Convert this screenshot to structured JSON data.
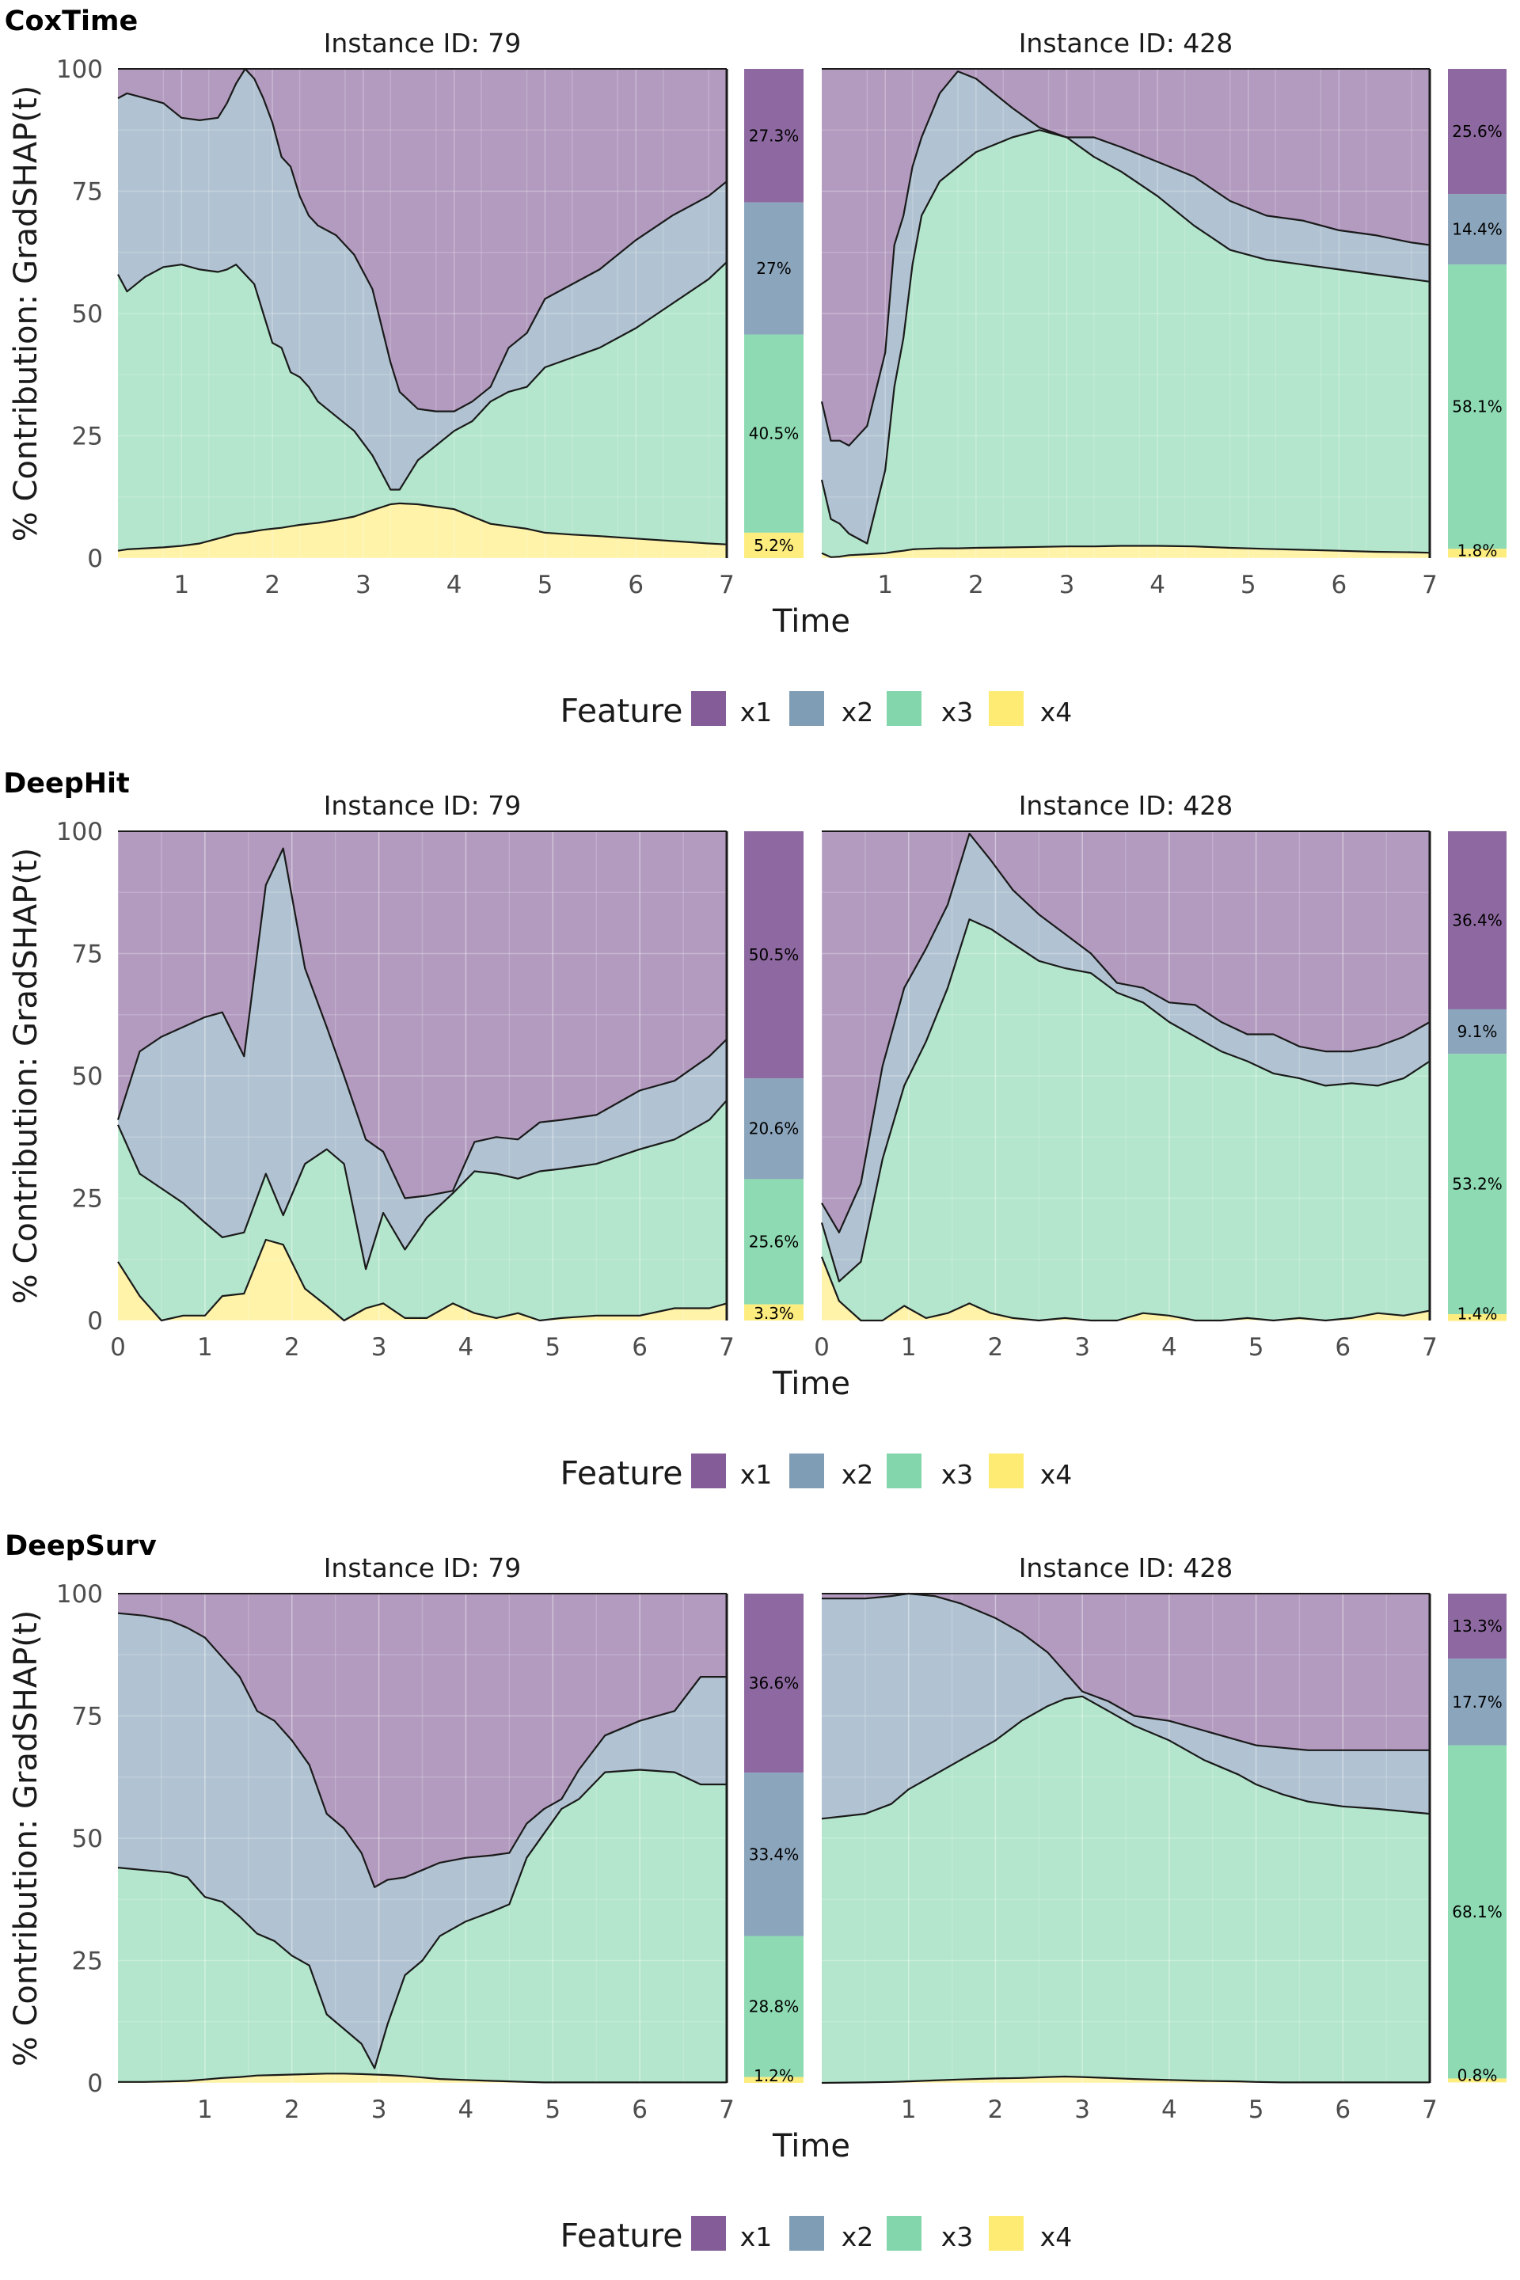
{
  "colors": {
    "x1": "#6e3f86",
    "x2": "#6a8ca9",
    "x3": "#6dcf9d",
    "x4": "#fde85a",
    "line": "#1a1a1a",
    "grid": "#d9d9d9"
  },
  "legend": {
    "title": "Feature",
    "items": [
      "x1",
      "x2",
      "x3",
      "x4"
    ]
  },
  "axis": {
    "ylabel": "% Contribution: GradSHAP(t)",
    "xlabel": "Time",
    "yticks": [
      0,
      25,
      50,
      75,
      100
    ]
  },
  "chart_data": [
    {
      "type": "area",
      "model": "CoxTime",
      "xticks": [
        1,
        2,
        3,
        4,
        5,
        6,
        7
      ],
      "xlim": [
        0.3,
        7
      ],
      "ylim": [
        0,
        100
      ],
      "panels": [
        {
          "title": "Instance ID: 79",
          "x": [
            0.3,
            0.4,
            0.6,
            0.8,
            1.0,
            1.2,
            1.4,
            1.5,
            1.6,
            1.7,
            1.8,
            1.9,
            2.0,
            2.1,
            2.2,
            2.3,
            2.4,
            2.5,
            2.7,
            2.9,
            3.1,
            3.3,
            3.4,
            3.6,
            3.8,
            4.0,
            4.2,
            4.4,
            4.6,
            4.8,
            5.0,
            5.3,
            5.6,
            6.0,
            6.4,
            6.8,
            7.0
          ],
          "c1": [
            1.5,
            1.8,
            2.0,
            2.2,
            2.5,
            3.0,
            4.0,
            4.5,
            5.0,
            5.2,
            5.5,
            5.8,
            6.0,
            6.2,
            6.5,
            6.8,
            7.0,
            7.2,
            7.8,
            8.5,
            9.8,
            11.0,
            11.2,
            11.0,
            10.5,
            10.0,
            8.5,
            7.0,
            6.5,
            6.0,
            5.2,
            4.8,
            4.5,
            4.0,
            3.5,
            3.0,
            2.8
          ],
          "c2": [
            58.0,
            54.5,
            57.5,
            59.5,
            60.0,
            59.0,
            58.5,
            59.0,
            60.0,
            58.0,
            56.0,
            50.0,
            44.0,
            43.0,
            38.0,
            37.0,
            35.0,
            32.0,
            29.0,
            26.0,
            21.0,
            14.0,
            14.0,
            20.0,
            23.0,
            26.0,
            28.0,
            32.0,
            34.0,
            35.0,
            39.0,
            41.0,
            43.0,
            47.0,
            52.0,
            57.0,
            60.5
          ],
          "c3": [
            94.0,
            95.0,
            94.0,
            93.0,
            90.0,
            89.5,
            90.0,
            93.0,
            97.0,
            100.0,
            98.0,
            94.0,
            89.0,
            82.0,
            80.0,
            74.0,
            70.0,
            68.0,
            66.0,
            62.0,
            55.0,
            40.0,
            34.0,
            30.5,
            30.0,
            30.0,
            32.0,
            35.0,
            43.0,
            46.0,
            53.0,
            56.0,
            59.0,
            65.0,
            70.0,
            74.0,
            77.0
          ],
          "summary": [
            {
              "feature": "x1",
              "pct": 27.3,
              "label": "27.3%"
            },
            {
              "feature": "x2",
              "pct": 27.0,
              "label": "27%"
            },
            {
              "feature": "x3",
              "pct": 40.5,
              "label": "40.5%"
            },
            {
              "feature": "x4",
              "pct": 5.2,
              "label": "5.2%"
            }
          ]
        },
        {
          "title": "Instance ID: 428",
          "x": [
            0.3,
            0.4,
            0.5,
            0.6,
            0.8,
            1.0,
            1.1,
            1.2,
            1.3,
            1.4,
            1.6,
            1.8,
            2.0,
            2.4,
            2.7,
            3.0,
            3.3,
            3.6,
            4.0,
            4.4,
            4.8,
            5.2,
            5.6,
            6.0,
            6.4,
            6.8,
            7.0
          ],
          "c1": [
            1.0,
            0.2,
            0.3,
            0.6,
            0.8,
            1.0,
            1.3,
            1.5,
            1.8,
            1.9,
            2.0,
            2.0,
            2.1,
            2.2,
            2.3,
            2.4,
            2.4,
            2.5,
            2.5,
            2.4,
            2.1,
            1.9,
            1.7,
            1.5,
            1.3,
            1.2,
            1.1
          ],
          "c2": [
            16.0,
            8.0,
            7.0,
            5.0,
            3.0,
            18.0,
            35.0,
            45.0,
            60.0,
            70.0,
            77.0,
            80.0,
            83.0,
            86.0,
            87.5,
            86.0,
            82.0,
            79.0,
            74.0,
            68.0,
            63.0,
            61.0,
            60.0,
            59.0,
            58.0,
            57.0,
            56.5
          ],
          "c3": [
            32.0,
            24.0,
            24.0,
            23.0,
            27.0,
            42.0,
            64.0,
            70.0,
            80.0,
            86.0,
            95.0,
            99.5,
            98.0,
            92.0,
            88.0,
            86.0,
            86.0,
            84.0,
            81.0,
            78.0,
            73.0,
            70.0,
            69.0,
            67.0,
            66.0,
            64.5,
            64.0
          ],
          "summary": [
            {
              "feature": "x1",
              "pct": 25.6,
              "label": "25.6%"
            },
            {
              "feature": "x2",
              "pct": 14.4,
              "label": "14.4%"
            },
            {
              "feature": "x3",
              "pct": 58.1,
              "label": "58.1%"
            },
            {
              "feature": "x4",
              "pct": 1.8,
              "label": "1.8%"
            }
          ]
        }
      ]
    },
    {
      "type": "area",
      "model": "DeepHit",
      "xticks": [
        0,
        1,
        2,
        3,
        4,
        5,
        6,
        7
      ],
      "xlim": [
        0,
        7
      ],
      "ylim": [
        0,
        100
      ],
      "panels": [
        {
          "title": "Instance ID: 79",
          "x": [
            0.0,
            0.25,
            0.5,
            0.75,
            1.0,
            1.2,
            1.45,
            1.7,
            1.9,
            2.15,
            2.4,
            2.6,
            2.85,
            3.05,
            3.3,
            3.55,
            3.85,
            4.1,
            4.35,
            4.6,
            4.85,
            5.1,
            5.5,
            6.0,
            6.4,
            6.8,
            7.0
          ],
          "c1": [
            12.0,
            5.0,
            0.0,
            1.0,
            1.0,
            5.0,
            5.5,
            16.5,
            15.5,
            6.5,
            3.0,
            0.0,
            2.5,
            3.5,
            0.5,
            0.5,
            3.5,
            1.5,
            0.5,
            1.5,
            0.0,
            0.5,
            1.0,
            1.0,
            2.5,
            2.5,
            3.5
          ],
          "c2": [
            40.0,
            30.0,
            27.0,
            24.0,
            20.0,
            17.0,
            18.0,
            30.0,
            21.5,
            32.0,
            35.0,
            32.0,
            10.5,
            22.0,
            14.5,
            21.0,
            26.0,
            30.5,
            30.0,
            29.0,
            30.5,
            31.0,
            32.0,
            35.0,
            37.0,
            41.0,
            45.0
          ],
          "c3": [
            41.0,
            55.0,
            58.0,
            60.0,
            62.0,
            63.0,
            54.0,
            89.0,
            96.5,
            72.0,
            60.0,
            50.0,
            37.0,
            34.5,
            25.0,
            25.5,
            26.5,
            36.5,
            37.5,
            37.0,
            40.5,
            41.0,
            42.0,
            47.0,
            49.0,
            54.0,
            57.5
          ],
          "summary": [
            {
              "feature": "x1",
              "pct": 50.5,
              "label": "50.5%"
            },
            {
              "feature": "x2",
              "pct": 20.6,
              "label": "20.6%"
            },
            {
              "feature": "x3",
              "pct": 25.6,
              "label": "25.6%"
            },
            {
              "feature": "x4",
              "pct": 3.3,
              "label": "3.3%"
            }
          ]
        },
        {
          "title": "Instance ID: 428",
          "x": [
            0.0,
            0.2,
            0.45,
            0.7,
            0.95,
            1.2,
            1.45,
            1.7,
            1.95,
            2.2,
            2.5,
            2.8,
            3.1,
            3.4,
            3.7,
            4.0,
            4.3,
            4.6,
            4.9,
            5.2,
            5.5,
            5.8,
            6.1,
            6.4,
            6.7,
            7.0
          ],
          "c1": [
            13.0,
            4.0,
            0.0,
            0.0,
            3.0,
            0.5,
            1.5,
            3.5,
            1.5,
            0.5,
            0.0,
            0.5,
            0.0,
            0.0,
            1.5,
            1.0,
            0.0,
            0.0,
            0.5,
            0.0,
            0.5,
            0.0,
            0.5,
            1.5,
            1.0,
            2.0
          ],
          "c2": [
            20.0,
            8.0,
            12.0,
            33.0,
            48.0,
            57.0,
            68.0,
            82.0,
            80.0,
            77.0,
            73.5,
            72.0,
            71.0,
            67.0,
            65.0,
            61.0,
            58.0,
            55.0,
            53.0,
            50.5,
            49.5,
            48.0,
            48.5,
            48.0,
            49.5,
            53.0
          ],
          "c3": [
            24.0,
            18.0,
            28.0,
            52.0,
            68.0,
            76.0,
            85.0,
            99.5,
            94.0,
            88.0,
            83.0,
            79.0,
            75.0,
            69.0,
            68.0,
            65.0,
            64.5,
            61.0,
            58.5,
            58.5,
            56.0,
            55.0,
            55.0,
            56.0,
            58.0,
            61.0
          ],
          "summary": [
            {
              "feature": "x1",
              "pct": 36.4,
              "label": "36.4%"
            },
            {
              "feature": "x2",
              "pct": 9.1,
              "label": "9.1%"
            },
            {
              "feature": "x3",
              "pct": 53.2,
              "label": "53.2%"
            },
            {
              "feature": "x4",
              "pct": 1.4,
              "label": "1.4%"
            }
          ]
        }
      ]
    },
    {
      "type": "area",
      "model": "DeepSurv",
      "xticks": [
        1,
        2,
        3,
        4,
        5,
        6,
        7
      ],
      "xlim": [
        0.0,
        7
      ],
      "ylim": [
        0,
        100
      ],
      "panels": [
        {
          "title": "Instance ID: 79",
          "x": [
            0.0,
            0.3,
            0.6,
            0.8,
            1.0,
            1.2,
            1.4,
            1.6,
            1.8,
            2.0,
            2.2,
            2.4,
            2.6,
            2.8,
            2.95,
            3.1,
            3.3,
            3.5,
            3.7,
            4.0,
            4.3,
            4.5,
            4.7,
            4.9,
            5.1,
            5.3,
            5.6,
            6.0,
            6.4,
            6.7,
            7.0
          ],
          "c1": [
            0.2,
            0.2,
            0.3,
            0.4,
            0.7,
            1.0,
            1.2,
            1.5,
            1.6,
            1.7,
            1.8,
            1.9,
            1.9,
            1.8,
            1.7,
            1.6,
            1.4,
            1.1,
            0.8,
            0.6,
            0.4,
            0.3,
            0.2,
            0.1,
            0.1,
            0.1,
            0.1,
            0.1,
            0.1,
            0.1,
            0.1
          ],
          "c2": [
            44.0,
            43.5,
            43.0,
            42.0,
            38.0,
            37.0,
            34.0,
            30.5,
            29.0,
            26.0,
            24.0,
            14.0,
            11.0,
            8.0,
            3.0,
            12.0,
            22.0,
            25.0,
            30.0,
            33.0,
            35.0,
            36.5,
            46.0,
            51.0,
            56.0,
            58.0,
            63.5,
            64.0,
            63.5,
            61.0,
            61.0
          ],
          "c3": [
            96.0,
            95.5,
            94.5,
            93.0,
            91.0,
            87.0,
            83.0,
            76.0,
            74.0,
            70.0,
            65.0,
            55.0,
            52.0,
            47.0,
            40.0,
            41.5,
            42.0,
            43.5,
            45.0,
            46.0,
            46.5,
            47.0,
            53.0,
            56.0,
            58.0,
            64.0,
            71.0,
            74.0,
            76.0,
            83.0,
            83.0
          ],
          "summary": [
            {
              "feature": "x1",
              "pct": 36.6,
              "label": "36.6%"
            },
            {
              "feature": "x2",
              "pct": 33.4,
              "label": "33.4%"
            },
            {
              "feature": "x3",
              "pct": 28.8,
              "label": "28.8%"
            },
            {
              "feature": "x4",
              "pct": 1.2,
              "label": "1.2%"
            }
          ]
        },
        {
          "title": "Instance ID: 428",
          "x": [
            0.0,
            0.5,
            0.8,
            1.0,
            1.3,
            1.6,
            2.0,
            2.3,
            2.6,
            2.8,
            3.0,
            3.3,
            3.6,
            4.0,
            4.4,
            4.8,
            5.0,
            5.3,
            5.6,
            6.0,
            6.4,
            6.7,
            7.0
          ],
          "c1": [
            0.0,
            0.1,
            0.2,
            0.3,
            0.5,
            0.7,
            0.9,
            1.0,
            1.2,
            1.3,
            1.2,
            1.0,
            0.8,
            0.6,
            0.4,
            0.3,
            0.2,
            0.1,
            0.1,
            0.1,
            0.1,
            0.1,
            0.1
          ],
          "c2": [
            54.0,
            55.0,
            57.0,
            60.0,
            63.0,
            66.0,
            70.0,
            74.0,
            77.0,
            78.5,
            79.0,
            76.0,
            73.0,
            70.0,
            66.0,
            63.0,
            61.0,
            59.0,
            57.5,
            56.5,
            56.0,
            55.5,
            55.0
          ],
          "c3": [
            99.0,
            99.0,
            99.5,
            100.0,
            99.5,
            98.0,
            95.0,
            92.0,
            88.0,
            84.0,
            80.0,
            78.0,
            75.0,
            74.0,
            72.0,
            70.0,
            69.0,
            68.5,
            68.0,
            68.0,
            68.0,
            68.0,
            68.0
          ],
          "summary": [
            {
              "feature": "x1",
              "pct": 13.3,
              "label": "13.3%"
            },
            {
              "feature": "x2",
              "pct": 17.7,
              "label": "17.7%"
            },
            {
              "feature": "x3",
              "pct": 68.1,
              "label": "68.1%"
            },
            {
              "feature": "x4",
              "pct": 0.8,
              "label": "0.8%"
            }
          ]
        }
      ]
    }
  ]
}
